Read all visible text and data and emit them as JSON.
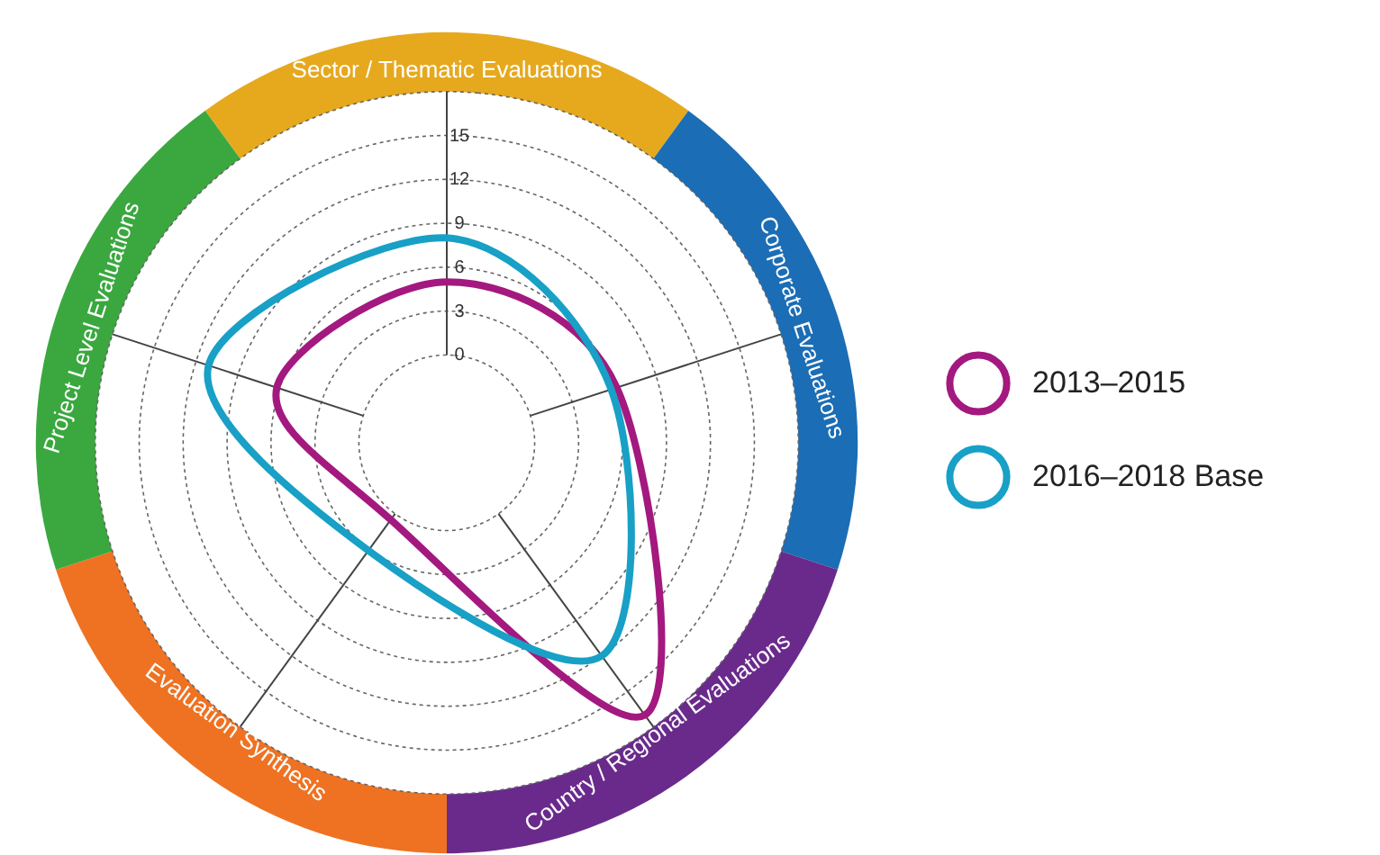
{
  "chart_data": {
    "type": "radar",
    "categories": [
      "Sector / Thematic Evaluations",
      "Corporate Evaluations",
      "Country / Regional Evaluations",
      "Evaluation Synthesis",
      "Project Level Evaluations"
    ],
    "colors": [
      "#e6a91e",
      "#1b6db5",
      "#6a2a8c",
      "#ee7222",
      "#3aa83f"
    ],
    "series": [
      {
        "name": "2013–2015",
        "color": "#a3197f",
        "values": [
          5,
          6.2,
          17,
          0.5,
          6.2
        ]
      },
      {
        "name": "2016–2018 Base",
        "color": "#18a0c6",
        "values": [
          8,
          5.8,
          12,
          3.1,
          11.1
        ]
      }
    ],
    "ylim": [
      -6,
      18
    ],
    "yticks": [
      0,
      3,
      6,
      9,
      12,
      15
    ],
    "grid": true,
    "legend": "right"
  }
}
